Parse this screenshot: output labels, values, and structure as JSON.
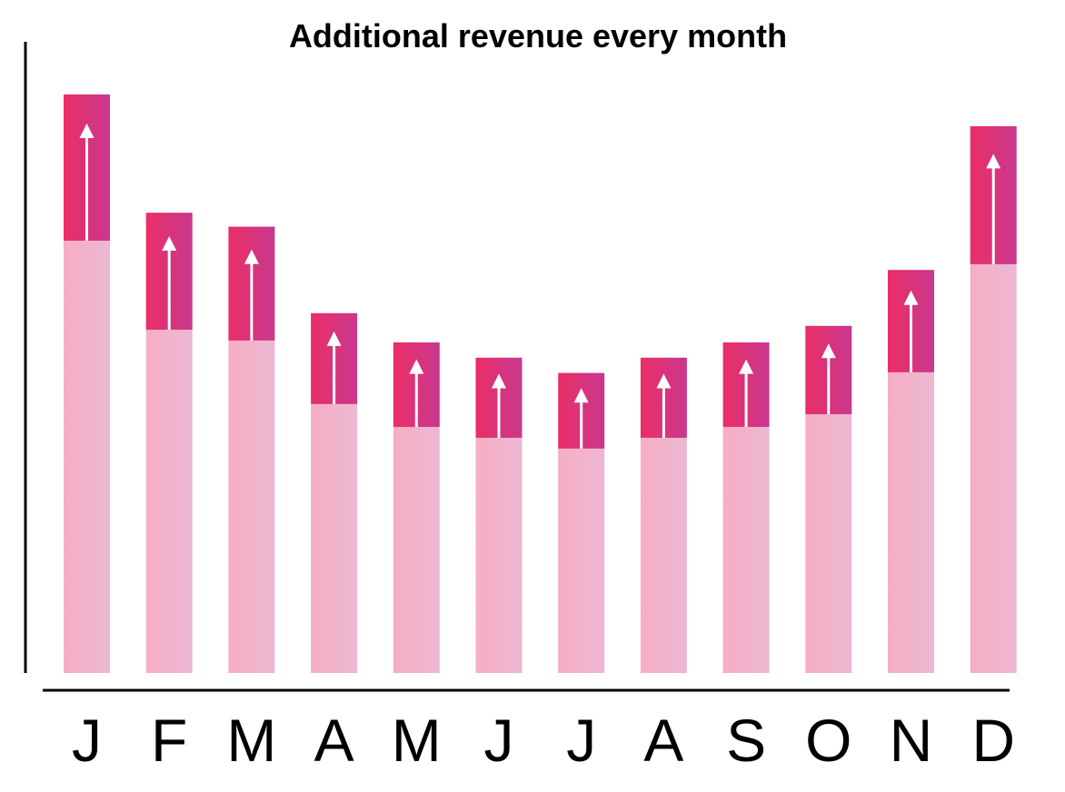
{
  "chart_data": {
    "type": "bar",
    "stacked": true,
    "title": "Additional revenue every month",
    "xlabel": "",
    "ylabel": "",
    "categories": [
      "J",
      "F",
      "M",
      "A",
      "M",
      "J",
      "J",
      "A",
      "S",
      "O",
      "N",
      "D"
    ],
    "series": [
      {
        "values": [
          68,
          54,
          52.3,
          42.3,
          38.7,
          37,
          35.3,
          37,
          38.7,
          40.7,
          47.3,
          64.3
        ]
      },
      {
        "values": [
          23,
          18.4,
          17.9,
          14.3,
          13.3,
          12.6,
          11.9,
          12.6,
          13.3,
          13.9,
          16.1,
          21.7
        ]
      }
    ],
    "ylim": [
      0,
      100
    ],
    "grid": false,
    "legend": "none",
    "colors": {
      "base_start": "#f6aec3",
      "base_end": "#ecb7d3",
      "additional_start": "#ea2e67",
      "additional_end": "#c8388e",
      "arrow": "#ffffff",
      "axis": "#000000"
    }
  }
}
